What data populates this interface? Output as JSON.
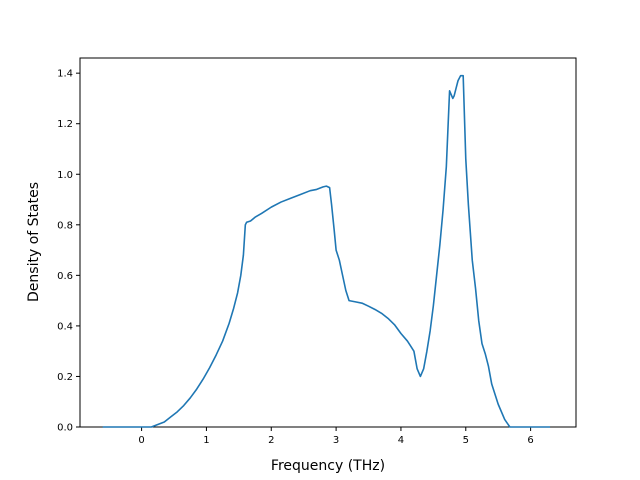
{
  "chart_data": {
    "type": "line",
    "title": "",
    "xlabel": "Frequency (THz)",
    "ylabel": "Density of States",
    "xlim": [
      -0.95,
      6.7
    ],
    "ylim": [
      0,
      1.46
    ],
    "xticks": [
      0,
      1,
      2,
      3,
      4,
      5,
      6
    ],
    "xtick_labels": [
      "0",
      "1",
      "2",
      "3",
      "4",
      "5",
      "6"
    ],
    "yticks": [
      0.0,
      0.2,
      0.4,
      0.6,
      0.8,
      1.0,
      1.2,
      1.4
    ],
    "ytick_labels": [
      "0.0",
      "0.2",
      "0.4",
      "0.6",
      "0.8",
      "1.0",
      "1.2",
      "1.4"
    ],
    "grid": false,
    "legend": "none",
    "colors": {
      "line": "#1f77b4"
    },
    "series": [
      {
        "x": [
          -0.6,
          -0.3,
          0.0,
          0.15,
          0.25,
          0.35,
          0.45,
          0.55,
          0.65,
          0.75,
          0.85,
          0.95,
          1.05,
          1.15,
          1.25,
          1.35,
          1.42,
          1.48,
          1.53,
          1.57,
          1.6,
          1.62,
          1.68,
          1.75,
          1.85,
          2.0,
          2.15,
          2.3,
          2.45,
          2.6,
          2.7,
          2.8,
          2.85,
          2.9,
          2.93,
          2.97,
          3.0,
          3.05,
          3.1,
          3.15,
          3.2,
          3.3,
          3.4,
          3.5,
          3.6,
          3.7,
          3.8,
          3.9,
          4.0,
          4.1,
          4.15,
          4.2,
          4.25,
          4.3,
          4.35,
          4.4,
          4.45,
          4.5,
          4.55,
          4.6,
          4.65,
          4.7,
          4.75,
          4.8,
          4.82,
          4.85,
          4.88,
          4.92,
          4.96,
          5.0,
          5.04,
          5.07,
          5.1,
          5.15,
          5.2,
          5.25,
          5.3,
          5.35,
          5.4,
          5.5,
          5.6,
          5.68,
          5.73,
          5.76,
          5.8,
          6.0,
          6.3
        ],
        "y": [
          0.0,
          0.0,
          0.0,
          0.0,
          0.01,
          0.02,
          0.04,
          0.06,
          0.085,
          0.115,
          0.15,
          0.19,
          0.235,
          0.285,
          0.34,
          0.41,
          0.47,
          0.53,
          0.6,
          0.68,
          0.8,
          0.81,
          0.815,
          0.83,
          0.845,
          0.87,
          0.89,
          0.905,
          0.92,
          0.935,
          0.94,
          0.95,
          0.953,
          0.947,
          0.88,
          0.78,
          0.7,
          0.66,
          0.6,
          0.54,
          0.5,
          0.495,
          0.49,
          0.478,
          0.465,
          0.45,
          0.43,
          0.405,
          0.37,
          0.34,
          0.32,
          0.3,
          0.23,
          0.2,
          0.23,
          0.3,
          0.38,
          0.48,
          0.6,
          0.72,
          0.86,
          1.03,
          1.33,
          1.3,
          1.31,
          1.34,
          1.37,
          1.39,
          1.39,
          1.06,
          0.88,
          0.77,
          0.66,
          0.55,
          0.42,
          0.33,
          0.29,
          0.24,
          0.17,
          0.09,
          0.03,
          0.0,
          0.0,
          0.0,
          0.0,
          0.0,
          0.0
        ]
      }
    ]
  }
}
